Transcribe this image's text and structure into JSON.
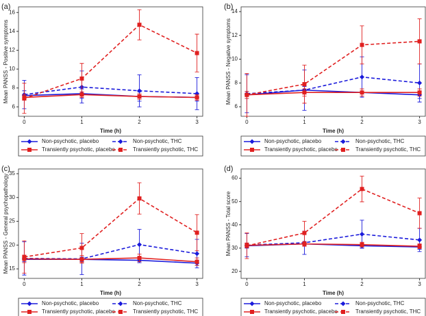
{
  "chart_data": [
    {
      "type": "line",
      "panel": "(a)",
      "ylabel": "Mean PANSS - Positive symptoms",
      "xlabel": "Time (h)",
      "x": [
        0,
        1,
        2,
        3
      ],
      "xlim": [
        -0.1,
        3.1
      ],
      "xticks": [
        0,
        1,
        2,
        3
      ],
      "ylim": [
        5,
        16.6
      ],
      "yticks": [
        6,
        8,
        10,
        12,
        14,
        16
      ],
      "series": [
        {
          "name": "Non-psychotic, placebo",
          "color": "#1a1adb",
          "dash": "solid",
          "marker": "diamond",
          "values": [
            7.2,
            7.4,
            7.1,
            7.0
          ],
          "errors": [
            0.5,
            0.5,
            0.5,
            0.4
          ]
        },
        {
          "name": "Non-psychotic, THC",
          "color": "#1a1adb",
          "dash": "dashed",
          "marker": "diamond",
          "values": [
            7.3,
            8.1,
            7.7,
            7.4
          ],
          "errors": [
            1.5,
            1.7,
            1.7,
            1.7
          ]
        },
        {
          "name": "Transiently psychotic, placebo",
          "color": "#e02020",
          "dash": "solid",
          "marker": "square",
          "values": [
            7.0,
            7.3,
            7.1,
            7.0
          ],
          "errors": [
            0.3,
            0.3,
            0.3,
            0.3
          ]
        },
        {
          "name": "Transiently psychotic, THC",
          "color": "#e02020",
          "dash": "dashed",
          "marker": "square",
          "values": [
            6.9,
            9.0,
            14.7,
            11.7
          ],
          "errors": [
            1.6,
            1.6,
            1.6,
            2.0
          ]
        }
      ]
    },
    {
      "type": "line",
      "panel": "(b)",
      "ylabel": "Mean PANSS - Negative symptoms",
      "xlabel": "Time (h)",
      "x": [
        0,
        1,
        2,
        3
      ],
      "xlim": [
        -0.1,
        3.1
      ],
      "xticks": [
        0,
        1,
        2,
        3
      ],
      "ylim": [
        5.2,
        14.4
      ],
      "yticks": [
        6,
        8,
        10,
        12,
        14
      ],
      "series": [
        {
          "name": "Non-psychotic, placebo",
          "color": "#1a1adb",
          "dash": "solid",
          "marker": "diamond",
          "values": [
            7.0,
            7.4,
            7.2,
            7.0
          ],
          "errors": [
            0.3,
            0.3,
            0.3,
            0.3
          ]
        },
        {
          "name": "Non-psychotic, THC",
          "color": "#1a1adb",
          "dash": "dashed",
          "marker": "diamond",
          "values": [
            7.1,
            7.4,
            8.5,
            8.0
          ],
          "errors": [
            1.6,
            1.7,
            1.7,
            1.6
          ]
        },
        {
          "name": "Transiently psychotic, placebo",
          "color": "#e02020",
          "dash": "solid",
          "marker": "square",
          "values": [
            7.0,
            7.2,
            7.2,
            7.2
          ],
          "errors": [
            0.3,
            0.3,
            0.3,
            0.3
          ]
        },
        {
          "name": "Transiently psychotic, THC",
          "color": "#e02020",
          "dash": "dashed",
          "marker": "square",
          "values": [
            7.0,
            7.9,
            11.2,
            11.5
          ],
          "errors": [
            1.8,
            1.6,
            1.6,
            1.9
          ]
        }
      ]
    },
    {
      "type": "line",
      "panel": "(c)",
      "ylabel": "Mean PANSS - General psychopathology",
      "xlabel": "Time (h)",
      "x": [
        0,
        1,
        2,
        3
      ],
      "xlim": [
        -0.1,
        3.1
      ],
      "xticks": [
        0,
        1,
        2,
        3
      ],
      "ylim": [
        13,
        36
      ],
      "yticks": [
        15,
        20,
        25,
        30,
        35
      ],
      "series": [
        {
          "name": "Non-psychotic, placebo",
          "color": "#1a1adb",
          "dash": "solid",
          "marker": "diamond",
          "values": [
            17.0,
            17.0,
            16.8,
            16.2
          ],
          "errors": [
            0.5,
            0.5,
            0.5,
            0.5
          ]
        },
        {
          "name": "Non-psychotic, THC",
          "color": "#1a1adb",
          "dash": "dashed",
          "marker": "diamond",
          "values": [
            17.2,
            17.1,
            20.1,
            18.2
          ],
          "errors": [
            3.5,
            3.3,
            3.2,
            3.0
          ]
        },
        {
          "name": "Transiently psychotic, placebo",
          "color": "#e02020",
          "dash": "solid",
          "marker": "square",
          "values": [
            17.1,
            17.0,
            17.3,
            16.5
          ],
          "errors": [
            0.8,
            0.8,
            0.8,
            0.8
          ]
        },
        {
          "name": "Transiently psychotic, THC",
          "color": "#e02020",
          "dash": "dashed",
          "marker": "square",
          "values": [
            17.5,
            19.4,
            29.8,
            22.6
          ],
          "errors": [
            3.4,
            3.0,
            3.3,
            3.8
          ]
        }
      ]
    },
    {
      "type": "line",
      "panel": "(d)",
      "ylabel": "Mean PANSS - Total score",
      "xlabel": "Time (h)",
      "x": [
        0,
        1,
        2,
        3
      ],
      "xlim": [
        -0.1,
        3.1
      ],
      "xticks": [
        0,
        1,
        2,
        3
      ],
      "ylim": [
        17,
        64
      ],
      "yticks": [
        20,
        30,
        40,
        50,
        60
      ],
      "series": [
        {
          "name": "Non-psychotic, placebo",
          "color": "#1a1adb",
          "dash": "solid",
          "marker": "diamond",
          "values": [
            31.0,
            31.8,
            31.0,
            30.5
          ],
          "errors": [
            1,
            1,
            1,
            1
          ]
        },
        {
          "name": "Non-psychotic, THC",
          "color": "#1a1adb",
          "dash": "dashed",
          "marker": "diamond",
          "values": [
            31.3,
            32.3,
            36.0,
            33.5
          ],
          "errors": [
            5,
            5,
            6,
            5
          ]
        },
        {
          "name": "Transiently psychotic, placebo",
          "color": "#e02020",
          "dash": "solid",
          "marker": "square",
          "values": [
            31.2,
            31.8,
            31.5,
            30.8
          ],
          "errors": [
            1,
            1,
            1,
            1
          ]
        },
        {
          "name": "Transiently psychotic, THC",
          "color": "#e02020",
          "dash": "dashed",
          "marker": "square",
          "values": [
            31.0,
            36.5,
            55.4,
            45.0
          ],
          "errors": [
            5.5,
            5,
            5.5,
            6.5
          ]
        }
      ]
    }
  ]
}
